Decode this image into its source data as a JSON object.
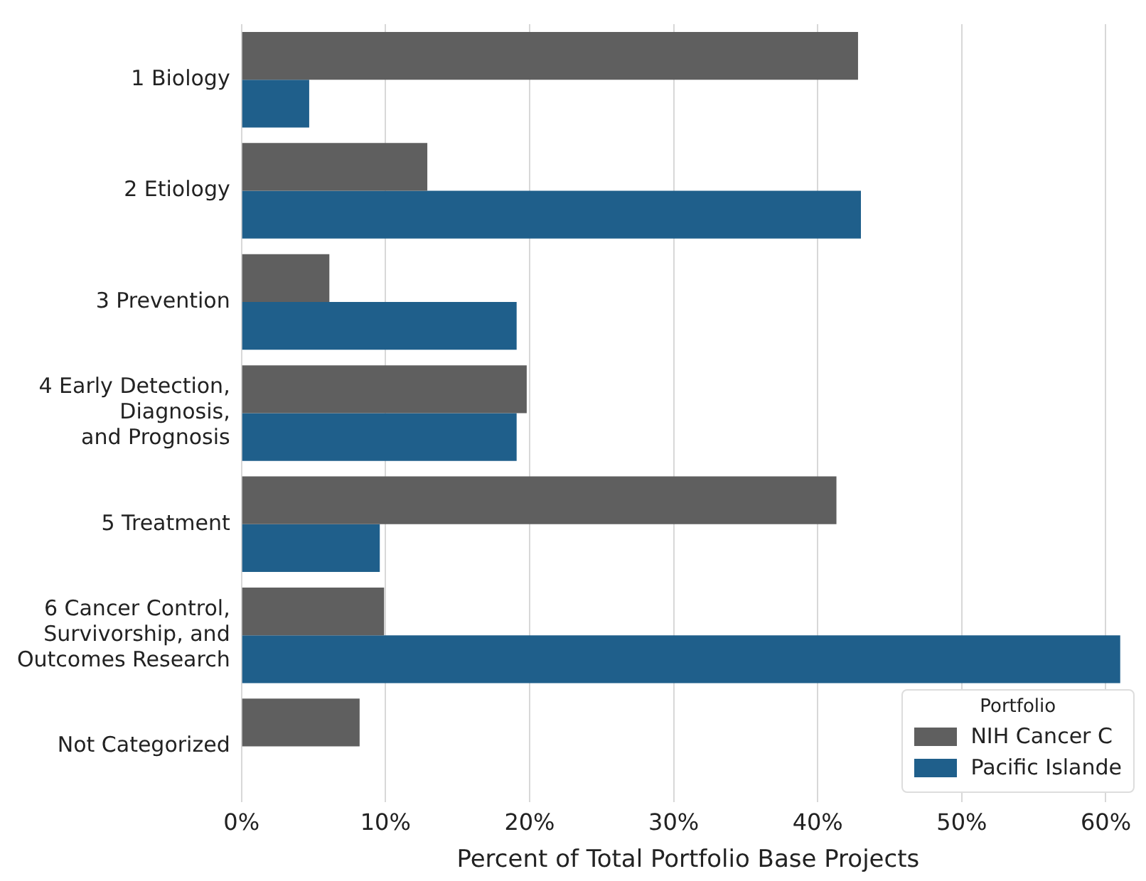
{
  "chart_data": {
    "type": "bar",
    "orientation": "horizontal",
    "xlabel": "Percent of Total Portfolio Base Projects",
    "legend_title": "Portfolio",
    "legend": "bottom right",
    "grid": "x",
    "categories": [
      "1 Biology",
      "2 Etiology",
      "3 Prevention",
      "4 Early Detection,\nDiagnosis,\nand Prognosis",
      "5 Treatment",
      "6 Cancer Control,\nSurvivorship, and\nOutcomes Research",
      "Not Categorized"
    ],
    "series": [
      {
        "name": "NIH Cancer C",
        "color": "#5f5f5f",
        "values": [
          42.8,
          12.9,
          6.1,
          19.8,
          41.3,
          9.9,
          8.2
        ]
      },
      {
        "name": "Pacific Islande",
        "color": "#1f5f8b",
        "values": [
          4.7,
          43.0,
          19.1,
          19.1,
          9.6,
          61,
          null
        ]
      }
    ],
    "xlim": [
      0,
      62
    ],
    "xticks": [
      {
        "value": 0,
        "label": "0%"
      },
      {
        "value": 10,
        "label": "10%"
      },
      {
        "value": 20,
        "label": "20%"
      },
      {
        "value": 30,
        "label": "30%"
      },
      {
        "value": 40,
        "label": "40%"
      },
      {
        "value": 50,
        "label": "50%"
      },
      {
        "value": 60,
        "label": "60%"
      }
    ]
  }
}
